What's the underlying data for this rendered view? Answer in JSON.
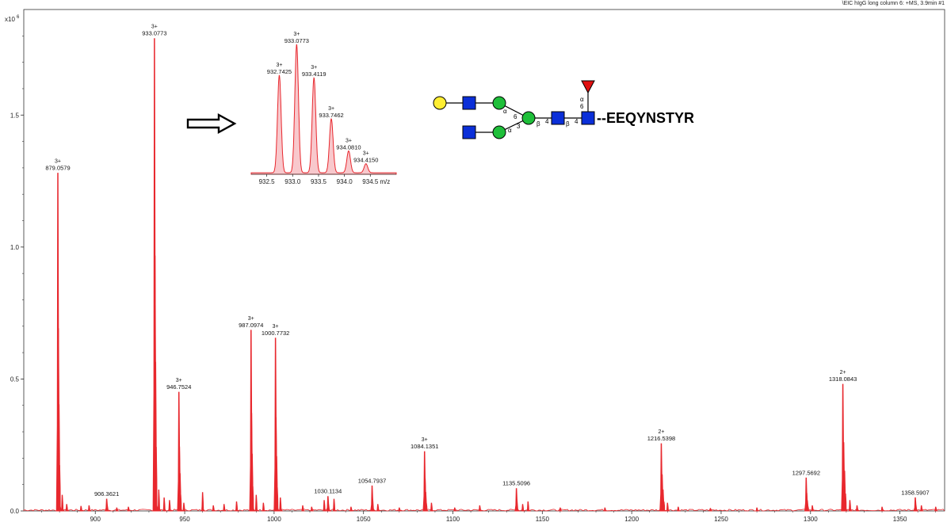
{
  "scan_title": "\\EIC hIgG long column 6: +MS, 3.9min #1",
  "y_scale_label": "x10",
  "y_scale_exponent": "6",
  "peptide": "--EEQYNSTYR",
  "colors": {
    "trace": "#e8282e",
    "fill": "#f8c8cc",
    "axis": "#333333",
    "hexnac": "#0b2fd8",
    "hexose_man": "#1fbf3a",
    "galactose": "#ffee33",
    "fucose": "#e01010"
  },
  "chart_data": [
    {
      "type": "line",
      "title": "",
      "xlabel": "",
      "ylabel": "",
      "xlim": [
        860,
        1375
      ],
      "ylim": [
        0,
        1.9
      ],
      "x_ticks": [
        900,
        950,
        1000,
        1050,
        1100,
        1150,
        1200,
        1250,
        1300,
        1350
      ],
      "y_ticks": [
        0.0,
        0.5,
        1.0,
        1.5
      ],
      "y_tick_labels": [
        "0.0",
        "0.5",
        "1.0",
        "1.5"
      ],
      "peaks": [
        {
          "mz": 879.0579,
          "intensity": 1.28,
          "charge": "3+",
          "label": "879.0579"
        },
        {
          "mz": 906.3621,
          "intensity": 0.045,
          "charge": "",
          "label": "906.3621"
        },
        {
          "mz": 933.0773,
          "intensity": 1.79,
          "charge": "3+",
          "label": "933.0773"
        },
        {
          "mz": 946.7524,
          "intensity": 0.45,
          "charge": "3+",
          "label": "946.7524"
        },
        {
          "mz": 987.0974,
          "intensity": 0.685,
          "charge": "3+",
          "label": "987.0974"
        },
        {
          "mz": 1000.7732,
          "intensity": 0.655,
          "charge": "3+",
          "label": "1000.7732"
        },
        {
          "mz": 1030.1134,
          "intensity": 0.055,
          "charge": "",
          "label": "1030.1134"
        },
        {
          "mz": 1054.7937,
          "intensity": 0.095,
          "charge": "",
          "label": "1054.7937"
        },
        {
          "mz": 1084.1351,
          "intensity": 0.225,
          "charge": "3+",
          "label": "1084.1351"
        },
        {
          "mz": 1135.5096,
          "intensity": 0.085,
          "charge": "",
          "label": "1135.5096"
        },
        {
          "mz": 1216.5398,
          "intensity": 0.255,
          "charge": "2+",
          "label": "1216.5398"
        },
        {
          "mz": 1297.5692,
          "intensity": 0.125,
          "charge": "",
          "label": "1297.5692"
        },
        {
          "mz": 1318.0843,
          "intensity": 0.48,
          "charge": "2+",
          "label": "1318.0843"
        },
        {
          "mz": 1358.5907,
          "intensity": 0.05,
          "charge": "",
          "label": "1358.5907"
        }
      ],
      "minor_peaks": [
        {
          "mz": 881.5,
          "intensity": 0.06
        },
        {
          "mz": 884.0,
          "intensity": 0.025
        },
        {
          "mz": 892.0,
          "intensity": 0.018
        },
        {
          "mz": 896.5,
          "intensity": 0.02
        },
        {
          "mz": 912.0,
          "intensity": 0.012
        },
        {
          "mz": 918.5,
          "intensity": 0.015
        },
        {
          "mz": 935.5,
          "intensity": 0.08
        },
        {
          "mz": 938.5,
          "intensity": 0.05
        },
        {
          "mz": 941.5,
          "intensity": 0.04
        },
        {
          "mz": 949.5,
          "intensity": 0.03
        },
        {
          "mz": 960.0,
          "intensity": 0.07
        },
        {
          "mz": 966.0,
          "intensity": 0.02
        },
        {
          "mz": 972.0,
          "intensity": 0.025
        },
        {
          "mz": 979.0,
          "intensity": 0.035
        },
        {
          "mz": 990.0,
          "intensity": 0.06
        },
        {
          "mz": 994.0,
          "intensity": 0.03
        },
        {
          "mz": 1003.5,
          "intensity": 0.05
        },
        {
          "mz": 1016.0,
          "intensity": 0.02
        },
        {
          "mz": 1021.0,
          "intensity": 0.015
        },
        {
          "mz": 1028.0,
          "intensity": 0.04
        },
        {
          "mz": 1033.5,
          "intensity": 0.045
        },
        {
          "mz": 1043.0,
          "intensity": 0.015
        },
        {
          "mz": 1058.0,
          "intensity": 0.025
        },
        {
          "mz": 1070.0,
          "intensity": 0.012
        },
        {
          "mz": 1088.0,
          "intensity": 0.03
        },
        {
          "mz": 1101.0,
          "intensity": 0.012
        },
        {
          "mz": 1115.0,
          "intensity": 0.02
        },
        {
          "mz": 1139.0,
          "intensity": 0.025
        },
        {
          "mz": 1142.0,
          "intensity": 0.035
        },
        {
          "mz": 1160.0,
          "intensity": 0.012
        },
        {
          "mz": 1185.0,
          "intensity": 0.012
        },
        {
          "mz": 1220.0,
          "intensity": 0.03
        },
        {
          "mz": 1226.0,
          "intensity": 0.015
        },
        {
          "mz": 1244.0,
          "intensity": 0.01
        },
        {
          "mz": 1270.0,
          "intensity": 0.012
        },
        {
          "mz": 1301.0,
          "intensity": 0.02
        },
        {
          "mz": 1322.0,
          "intensity": 0.04
        },
        {
          "mz": 1326.0,
          "intensity": 0.02
        },
        {
          "mz": 1340.0,
          "intensity": 0.015
        },
        {
          "mz": 1362.0,
          "intensity": 0.02
        },
        {
          "mz": 1370.0,
          "intensity": 0.015
        }
      ]
    },
    {
      "type": "line",
      "title": "",
      "xlabel": "m/z",
      "ylabel": "",
      "xlim": [
        932.2,
        935.0
      ],
      "ylim": [
        0,
        1.08
      ],
      "x_ticks": [
        932.5,
        933.0,
        933.5,
        934.0,
        934.5
      ],
      "x_tick_labels": [
        "932.5",
        "933.0",
        "933.5",
        "934.0",
        "934.5"
      ],
      "peaks": [
        {
          "mz": 932.7425,
          "intensity": 0.76,
          "charge": "3+",
          "label": "932.7425"
        },
        {
          "mz": 933.0773,
          "intensity": 1.0,
          "charge": "3+",
          "label": "933.0773"
        },
        {
          "mz": 933.4119,
          "intensity": 0.74,
          "charge": "3+",
          "label": "933.4119"
        },
        {
          "mz": 933.7462,
          "intensity": 0.42,
          "charge": "3+",
          "label": "933.7462"
        },
        {
          "mz": 934.081,
          "intensity": 0.17,
          "charge": "3+",
          "label": "934.0810"
        },
        {
          "mz": 934.415,
          "intensity": 0.07,
          "charge": "3+",
          "label": "934.4150"
        }
      ]
    }
  ],
  "glycan": {
    "linkages": [
      "α",
      "6",
      "α",
      "3",
      "β",
      "4",
      "β",
      "4",
      "α",
      "6"
    ]
  }
}
